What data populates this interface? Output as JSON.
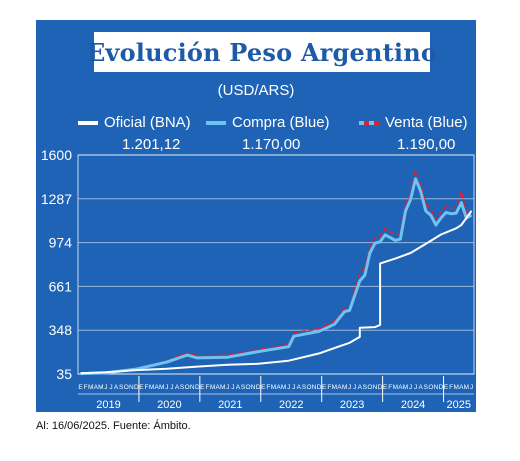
{
  "title": "Evolución Peso Argentino",
  "subtitle": "(USD/ARS)",
  "footer": "Al: 16/06/2025. Fuente: Ámbito.",
  "colors": {
    "background": "#1e63b5",
    "oficial": "#ffffff",
    "compra": "#6ec3f2",
    "venta": "#e0202e"
  },
  "legend": [
    {
      "label": "Oficial (BNA)",
      "value": "1.201,12",
      "color": "#ffffff"
    },
    {
      "label": "Compra (Blue)",
      "value": "1.170,00",
      "color": "#6ec3f2"
    },
    {
      "label": "Venta (Blue)",
      "value": "1.190,00",
      "color": "#e0202e"
    }
  ],
  "chart_data": {
    "type": "line",
    "ylim": [
      35,
      1600
    ],
    "yticks": [
      35,
      348,
      661,
      974,
      1287,
      1600
    ],
    "x_range": [
      "2019-01",
      "2025-06"
    ],
    "month_letters": "EFMAMJJASOND",
    "years": [
      "2019",
      "2020",
      "2021",
      "2022",
      "2023",
      "2024",
      "2025"
    ],
    "grid": true,
    "series": [
      {
        "name": "Oficial (BNA)",
        "x": [
          "2019-01",
          "2019-06",
          "2019-12",
          "2020-06",
          "2020-12",
          "2021-06",
          "2021-12",
          "2022-06",
          "2022-12",
          "2023-03",
          "2023-06",
          "2023-08",
          "2023-08",
          "2023-11",
          "2023-12",
          "2023-12",
          "2024-03",
          "2024-06",
          "2024-09",
          "2024-12",
          "2025-03",
          "2025-04",
          "2025-05",
          "2025-06"
        ],
        "values": [
          40,
          47,
          63,
          73,
          88,
          101,
          108,
          130,
          182,
          220,
          258,
          300,
          365,
          370,
          385,
          825,
          860,
          900,
          965,
          1032,
          1076,
          1100,
          1150,
          1201
        ]
      },
      {
        "name": "Compra (Blue)",
        "x": [
          "2019-01",
          "2019-06",
          "2019-12",
          "2020-06",
          "2020-10",
          "2020-12",
          "2021-06",
          "2021-12",
          "2022-06",
          "2022-07",
          "2022-12",
          "2023-03",
          "2023-05",
          "2023-06",
          "2023-08",
          "2023-09",
          "2023-10",
          "2023-11",
          "2023-12",
          "2024-01",
          "2024-03",
          "2024-04",
          "2024-05",
          "2024-06",
          "2024-07",
          "2024-08",
          "2024-09",
          "2024-10",
          "2024-11",
          "2024-12",
          "2025-01",
          "2025-02",
          "2025-03",
          "2025-04",
          "2025-05",
          "2025-06"
        ],
        "values": [
          38,
          43,
          70,
          120,
          170,
          150,
          155,
          195,
          230,
          305,
          340,
          390,
          480,
          490,
          700,
          740,
          900,
          970,
          980,
          1030,
          990,
          1000,
          1200,
          1280,
          1430,
          1340,
          1200,
          1170,
          1100,
          1150,
          1190,
          1180,
          1185,
          1260,
          1150,
          1170
        ]
      },
      {
        "name": "Venta (Blue)",
        "x": [
          "2019-01",
          "2019-06",
          "2019-12",
          "2020-06",
          "2020-10",
          "2020-12",
          "2021-06",
          "2021-12",
          "2022-06",
          "2022-07",
          "2022-12",
          "2023-03",
          "2023-05",
          "2023-06",
          "2023-08",
          "2023-09",
          "2023-10",
          "2023-11",
          "2023-12",
          "2024-01",
          "2024-03",
          "2024-04",
          "2024-05",
          "2024-06",
          "2024-07",
          "2024-08",
          "2024-09",
          "2024-10",
          "2024-11",
          "2024-12",
          "2025-01",
          "2025-02",
          "2025-03",
          "2025-04",
          "2025-05",
          "2025-06"
        ],
        "values": [
          40,
          46,
          75,
          130,
          185,
          165,
          170,
          210,
          245,
          330,
          360,
          410,
          500,
          510,
          750,
          800,
          950,
          1010,
          1020,
          1075,
          1030,
          1040,
          1250,
          1320,
          1490,
          1380,
          1250,
          1210,
          1140,
          1190,
          1230,
          1220,
          1230,
          1340,
          1190,
          1190
        ]
      }
    ]
  }
}
